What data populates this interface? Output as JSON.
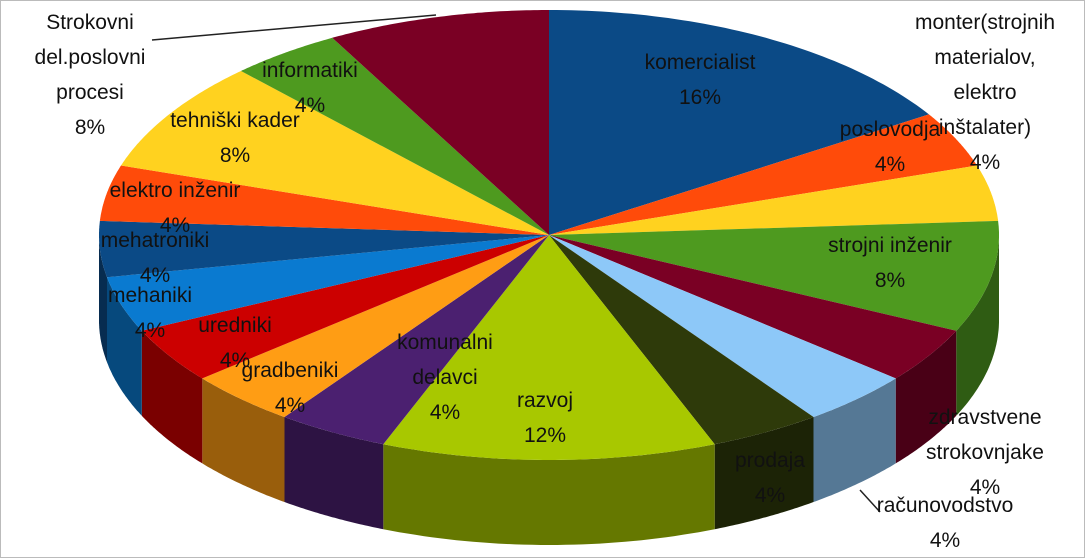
{
  "chart_data": {
    "type": "pie",
    "categories": [
      "komercialist",
      "poslovodja",
      "monter(strojnih materialov, elektro inštalater)",
      "strojni inženir",
      "zdravstvene strokovnjake",
      "računovodstvo",
      "prodaja",
      "razvoj",
      "komunalni delavci",
      "gradbeniki",
      "uredniki",
      "mehaniki",
      "mehatroniki",
      "elektro inženir",
      "tehniški kader",
      "informatiki",
      "Strokovni del.poslovni procesi"
    ],
    "values": [
      16,
      4,
      4,
      8,
      4,
      4,
      4,
      12,
      4,
      4,
      4,
      4,
      4,
      4,
      8,
      4,
      8
    ],
    "value_labels": [
      "16%",
      "4%",
      "4%",
      "8%",
      "4%",
      "4%",
      "4%",
      "12%",
      "4%",
      "4%",
      "4%",
      "4%",
      "4%",
      "4%",
      "8%",
      "4%",
      "8%"
    ],
    "colors": [
      "#0b4a86",
      "#ff4b0a",
      "#ffd21f",
      "#4e9a1f",
      "#7a0024",
      "#8dc8f8",
      "#2e3a0a",
      "#a8c800",
      "#4b2070",
      "#ff9d14",
      "#cc0000",
      "#0a7ad0",
      "#0b4a86",
      "#ff4b0a",
      "#ffd21f",
      "#4e9a1f",
      "#7a0024"
    ]
  }
}
